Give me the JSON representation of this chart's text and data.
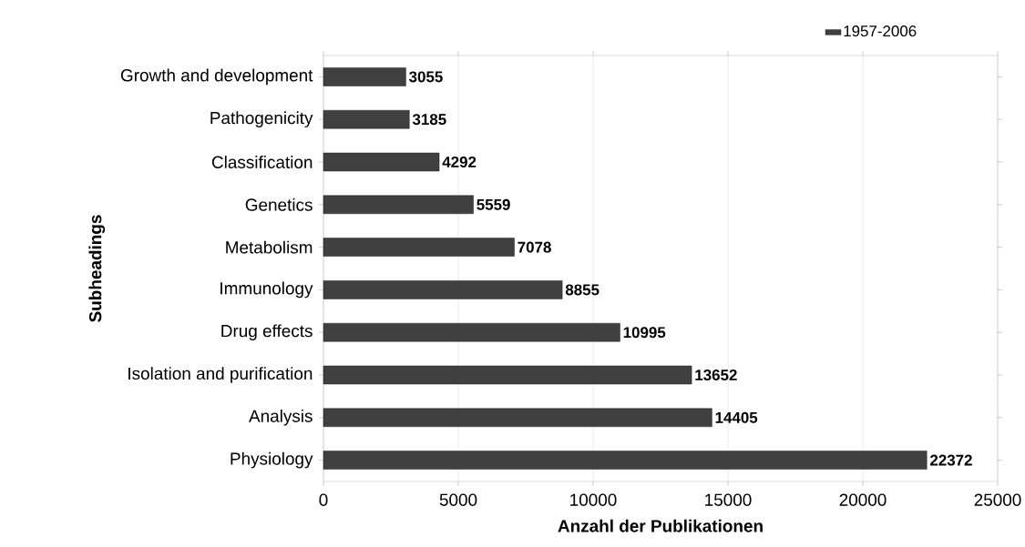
{
  "chart_data": {
    "type": "bar",
    "orientation": "horizontal",
    "xlabel": "Anzahl der Publikationen",
    "ylabel": "Subheadings",
    "categories": [
      "Growth and development",
      "Pathogenicity",
      "Classification",
      "Genetics",
      "Metabolism",
      "Immunology",
      "Drug effects",
      "Isolation and purification",
      "Analysis",
      "Physiology"
    ],
    "series": [
      {
        "name": "1957-2006",
        "color": "#404040",
        "values": [
          3055,
          3185,
          4292,
          5559,
          7078,
          8855,
          10995,
          13652,
          14405,
          22372
        ]
      }
    ],
    "xlim": [
      0,
      25000
    ],
    "xticks": [
      0,
      5000,
      10000,
      15000,
      20000,
      25000
    ],
    "grid": "x",
    "legend": "top right",
    "data_labels": true
  }
}
